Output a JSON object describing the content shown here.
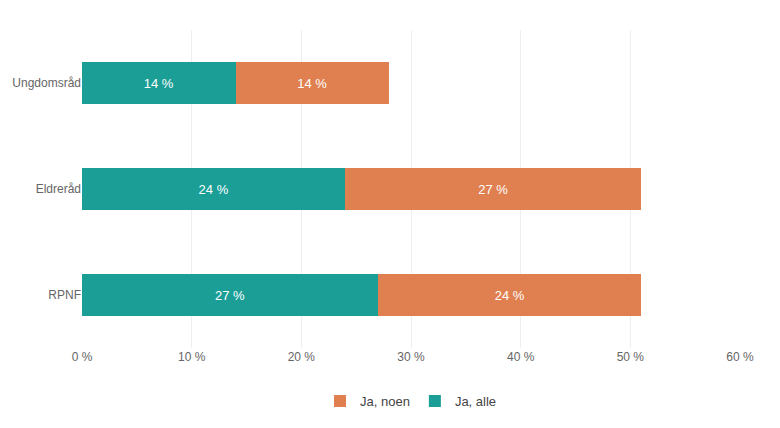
{
  "chart_data": {
    "type": "bar",
    "orientation": "horizontal",
    "stacked": true,
    "categories": [
      "RPNF",
      "Eldreråd",
      "Ungdomsråd"
    ],
    "series": [
      {
        "name": "Ja, alle",
        "color": "#1a9e96",
        "values": [
          27,
          24,
          14
        ],
        "value_labels": [
          "27 %",
          "24 %",
          "14 %"
        ]
      },
      {
        "name": "Ja, noen",
        "color": "#e07f4f",
        "values": [
          24,
          27,
          14
        ],
        "value_labels": [
          "24 %",
          "27 %",
          "14 %"
        ]
      }
    ],
    "xlim": [
      0,
      60
    ],
    "xticks": [
      {
        "value": 0,
        "label": "0 %"
      },
      {
        "value": 10,
        "label": "10 %"
      },
      {
        "value": 20,
        "label": "20 %"
      },
      {
        "value": 30,
        "label": "30 %"
      },
      {
        "value": 40,
        "label": "40 %"
      },
      {
        "value": 50,
        "label": "50 %"
      },
      {
        "value": 60,
        "label": "60 %"
      }
    ],
    "grid": true,
    "legend": "bottom",
    "data_labels": true
  }
}
